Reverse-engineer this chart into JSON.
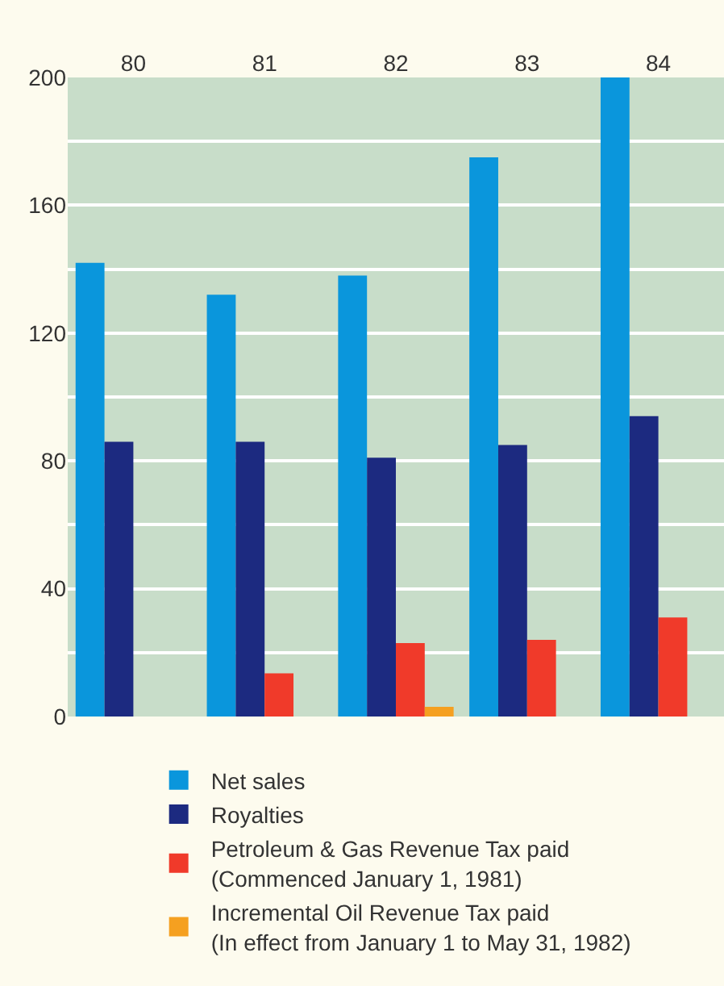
{
  "chart_data": {
    "type": "bar",
    "categories": [
      "80",
      "81",
      "82",
      "83",
      "84"
    ],
    "series": [
      {
        "name": "Net sales",
        "color": "#0a96dc",
        "values": [
          142,
          132,
          138,
          175,
          200
        ]
      },
      {
        "name": "Royalties",
        "color": "#1c2a80",
        "values": [
          86,
          86,
          81,
          85,
          94
        ]
      },
      {
        "name": "Petroleum & Gas Revenue Tax paid\n(Commenced January 1, 1981)",
        "color": "#f03a2a",
        "values": [
          null,
          13.5,
          23,
          24,
          31
        ]
      },
      {
        "name": "Incremental Oil Revenue Tax paid\n(In effect from January 1 to May 31, 1982)",
        "color": "#f5a020",
        "values": [
          null,
          null,
          3,
          null,
          null
        ]
      }
    ],
    "ylim": [
      0,
      200
    ],
    "yticks": [
      0,
      {
        "value": 20,
        "label": null
      },
      40,
      {
        "value": 60,
        "label": null
      },
      80,
      {
        "value": 100,
        "label": null
      },
      120,
      {
        "value": 140,
        "label": null
      },
      160,
      {
        "value": 180,
        "label": null
      },
      200
    ],
    "grid": "y",
    "legend": "bottom"
  }
}
